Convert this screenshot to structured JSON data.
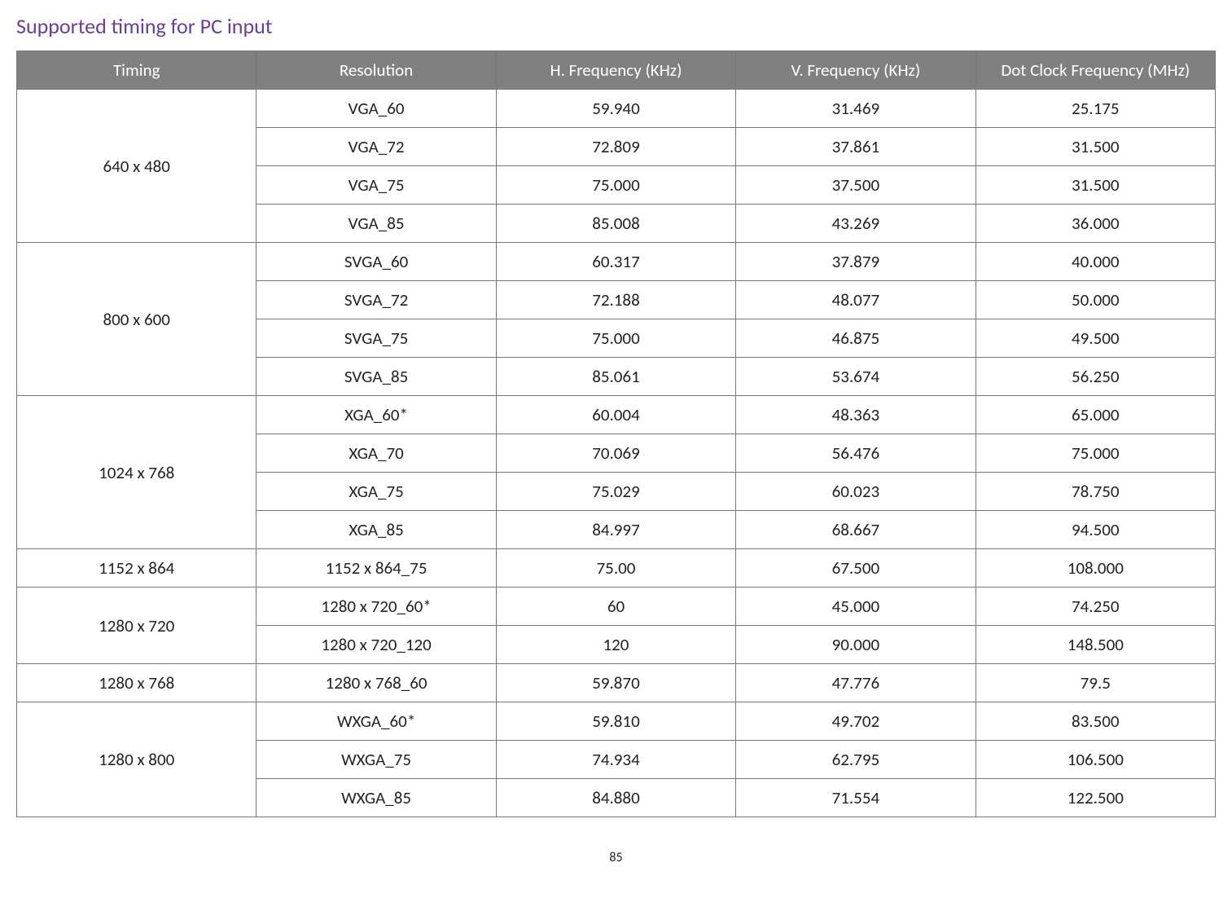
{
  "heading": {
    "text": "Supported timing for PC input",
    "color": "#6a3c9b"
  },
  "table": {
    "header_bg": "#808080",
    "header_color": "#ffffff",
    "columns": [
      "Timing",
      "Resolution",
      "H. Frequency (KHz)",
      "V. Frequency (KHz)",
      "Dot Clock Frequency (MHz)"
    ],
    "groups": [
      {
        "timing": "640 x 480",
        "rows": [
          {
            "resolution": "VGA_60",
            "hfreq": "59.940",
            "vfreq": "31.469",
            "dot": "25.175"
          },
          {
            "resolution": "VGA_72",
            "hfreq": "72.809",
            "vfreq": "37.861",
            "dot": "31.500"
          },
          {
            "resolution": "VGA_75",
            "hfreq": "75.000",
            "vfreq": "37.500",
            "dot": "31.500"
          },
          {
            "resolution": "VGA_85",
            "hfreq": "85.008",
            "vfreq": "43.269",
            "dot": "36.000"
          }
        ]
      },
      {
        "timing": "800 x 600",
        "rows": [
          {
            "resolution": "SVGA_60",
            "hfreq": "60.317",
            "vfreq": "37.879",
            "dot": "40.000"
          },
          {
            "resolution": "SVGA_72",
            "hfreq": "72.188",
            "vfreq": "48.077",
            "dot": "50.000"
          },
          {
            "resolution": "SVGA_75",
            "hfreq": "75.000",
            "vfreq": "46.875",
            "dot": "49.500"
          },
          {
            "resolution": "SVGA_85",
            "hfreq": "85.061",
            "vfreq": "53.674",
            "dot": "56.250"
          }
        ]
      },
      {
        "timing": "1024 x 768",
        "rows": [
          {
            "resolution": "XGA_60*",
            "hfreq": "60.004",
            "vfreq": "48.363",
            "dot": "65.000"
          },
          {
            "resolution": "XGA_70",
            "hfreq": "70.069",
            "vfreq": "56.476",
            "dot": "75.000"
          },
          {
            "resolution": "XGA_75",
            "hfreq": "75.029",
            "vfreq": "60.023",
            "dot": "78.750"
          },
          {
            "resolution": "XGA_85",
            "hfreq": "84.997",
            "vfreq": "68.667",
            "dot": "94.500"
          }
        ]
      },
      {
        "timing": "1152 x 864",
        "rows": [
          {
            "resolution": "1152 x 864_75",
            "hfreq": "75.00",
            "vfreq": "67.500",
            "dot": "108.000"
          }
        ]
      },
      {
        "timing": "1280 x 720",
        "rows": [
          {
            "resolution": "1280 x 720_60*",
            "hfreq": "60",
            "vfreq": "45.000",
            "dot": "74.250"
          },
          {
            "resolution": "1280 x 720_120",
            "hfreq": "120",
            "vfreq": "90.000",
            "dot": "148.500"
          }
        ]
      },
      {
        "timing": "1280 x 768",
        "rows": [
          {
            "resolution": "1280 x 768_60",
            "hfreq": "59.870",
            "vfreq": "47.776",
            "dot": "79.5"
          }
        ]
      },
      {
        "timing": "1280 x 800",
        "rows": [
          {
            "resolution": "WXGA_60*",
            "hfreq": "59.810",
            "vfreq": "49.702",
            "dot": "83.500"
          },
          {
            "resolution": "WXGA_75",
            "hfreq": "74.934",
            "vfreq": "62.795",
            "dot": "106.500"
          },
          {
            "resolution": "WXGA_85",
            "hfreq": "84.880",
            "vfreq": "71.554",
            "dot": "122.500"
          }
        ]
      }
    ]
  },
  "page_number": "85"
}
